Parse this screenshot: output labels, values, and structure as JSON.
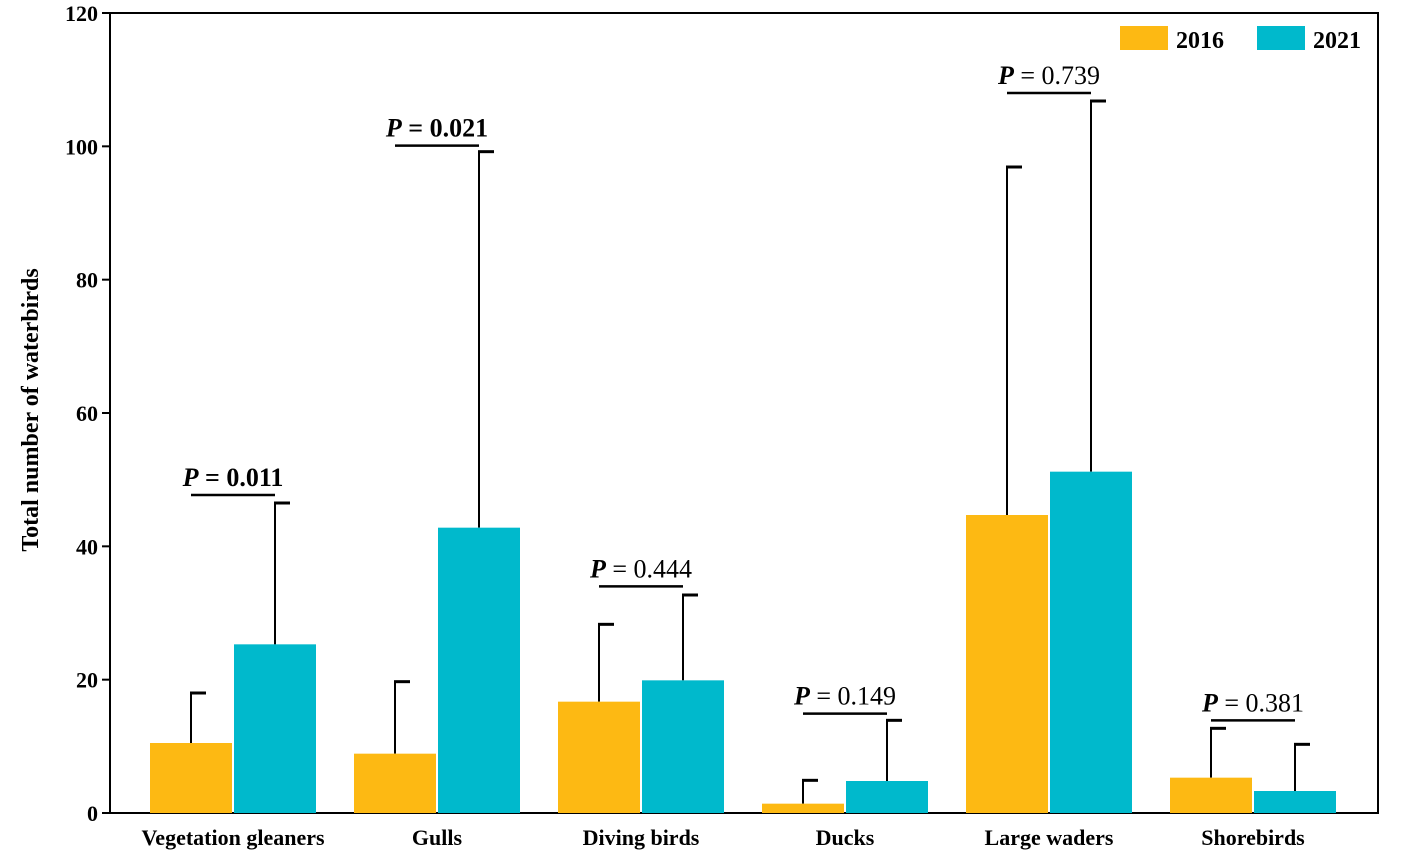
{
  "chart_data": {
    "type": "bar",
    "title": "",
    "xlabel": "",
    "ylabel": "Total number of waterbirds",
    "ylim": [
      0,
      120
    ],
    "yticks": [
      0,
      20,
      40,
      60,
      80,
      100,
      120
    ],
    "categories": [
      "Vegetation gleaners",
      "Gulls",
      "Diving birds",
      "Ducks",
      "Large waders",
      "Shorebirds"
    ],
    "series": [
      {
        "name": "2016",
        "color": "#FDB913",
        "values": [
          10.5,
          8.9,
          16.7,
          1.4,
          44.7,
          5.3
        ],
        "error_upper": [
          18.0,
          19.7,
          28.3,
          4.9,
          96.9,
          12.7
        ]
      },
      {
        "name": "2021",
        "color": "#00B9CC",
        "values": [
          25.3,
          42.8,
          19.9,
          4.8,
          51.2,
          3.3
        ],
        "error_upper": [
          46.5,
          99.2,
          32.7,
          13.9,
          106.8,
          10.3
        ]
      }
    ],
    "p_values": [
      {
        "prefix": "P",
        "text": " = 0.011",
        "bold": true,
        "y": 47.7
      },
      {
        "prefix": "P",
        "text": " = 0.021",
        "bold": true,
        "y": 100.1
      },
      {
        "prefix": "P",
        "text": " = 0.444",
        "bold": false,
        "y": 34.0
      },
      {
        "prefix": "P",
        "text": " = 0.149",
        "bold": false,
        "y": 14.9
      },
      {
        "prefix": "P",
        "text": " = 0.739",
        "bold": false,
        "y": 108.0
      },
      {
        "prefix": "P",
        "text": " = 0.381",
        "bold": false,
        "y": 13.9
      }
    ],
    "legend": {
      "position": "top-right",
      "items": [
        "2016",
        "2021"
      ]
    },
    "grid": false
  }
}
